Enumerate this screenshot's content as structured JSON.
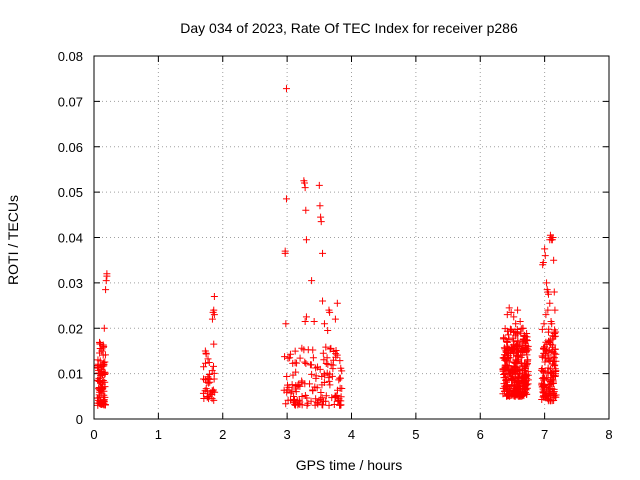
{
  "chart_data": {
    "type": "scatter",
    "title": "Day 034 of 2023, Rate Of TEC Index for receiver p286",
    "xlabel": "GPS time / hours",
    "ylabel": "ROTI / TECUs",
    "xlim": [
      0,
      8
    ],
    "ylim": [
      0,
      0.08
    ],
    "grid": true,
    "marker": "+",
    "series_color": "#ff0000",
    "x_ticks": [
      "0",
      "1",
      "2",
      "3",
      "4",
      "5",
      "6",
      "7",
      "8"
    ],
    "y_ticks": [
      "0",
      "0.01",
      "0.02",
      "0.03",
      "0.04",
      "0.05",
      "0.06",
      "0.07",
      "0.08"
    ],
    "clusters": [
      {
        "x": [
          0.05,
          0.18
        ],
        "y": [
          0.003,
          0.017
        ],
        "n": 90,
        "seed": 11
      },
      {
        "x": [
          1.7,
          1.88
        ],
        "y": [
          0.004,
          0.015
        ],
        "n": 35,
        "seed": 12
      },
      {
        "x": [
          2.95,
          3.85
        ],
        "y": [
          0.003,
          0.016
        ],
        "n": 140,
        "seed": 13
      },
      {
        "x": [
          6.35,
          6.75
        ],
        "y": [
          0.005,
          0.02
        ],
        "n": 330,
        "seed": 14
      },
      {
        "x": [
          6.95,
          7.18
        ],
        "y": [
          0.004,
          0.02
        ],
        "n": 140,
        "seed": 15
      }
    ],
    "points": [
      [
        0.1,
        0.0165
      ],
      [
        0.12,
        0.015
      ],
      [
        0.15,
        0.016
      ],
      [
        0.16,
        0.02
      ],
      [
        0.18,
        0.0285
      ],
      [
        0.19,
        0.0305
      ],
      [
        0.2,
        0.0315
      ],
      [
        0.2,
        0.032
      ],
      [
        0.14,
        0.012
      ],
      [
        1.73,
        0.015
      ],
      [
        1.74,
        0.0145
      ],
      [
        1.84,
        0.022
      ],
      [
        1.85,
        0.0235
      ],
      [
        1.86,
        0.024
      ],
      [
        1.87,
        0.023
      ],
      [
        1.87,
        0.027
      ],
      [
        1.86,
        0.0165
      ],
      [
        2.97,
        0.0365
      ],
      [
        2.97,
        0.037
      ],
      [
        2.99,
        0.0485
      ],
      [
        2.99,
        0.0728
      ],
      [
        2.98,
        0.021
      ],
      [
        3.26,
        0.0525
      ],
      [
        3.27,
        0.052
      ],
      [
        3.28,
        0.051
      ],
      [
        3.29,
        0.046
      ],
      [
        3.3,
        0.0395
      ],
      [
        3.28,
        0.0215
      ],
      [
        3.3,
        0.0225
      ],
      [
        3.38,
        0.0305
      ],
      [
        3.42,
        0.0215
      ],
      [
        3.5,
        0.0515
      ],
      [
        3.51,
        0.047
      ],
      [
        3.52,
        0.0445
      ],
      [
        3.53,
        0.0435
      ],
      [
        3.55,
        0.0365
      ],
      [
        3.55,
        0.026
      ],
      [
        3.65,
        0.024
      ],
      [
        3.66,
        0.0235
      ],
      [
        3.63,
        0.0195
      ],
      [
        3.75,
        0.022
      ],
      [
        3.78,
        0.0255
      ],
      [
        3.58,
        0.021
      ],
      [
        6.42,
        0.023
      ],
      [
        6.45,
        0.0245
      ],
      [
        6.48,
        0.0235
      ],
      [
        6.52,
        0.0225
      ],
      [
        6.55,
        0.021
      ],
      [
        6.58,
        0.024
      ],
      [
        6.62,
        0.0215
      ],
      [
        6.66,
        0.02
      ],
      [
        6.97,
        0.034
      ],
      [
        6.98,
        0.0345
      ],
      [
        7.0,
        0.0375
      ],
      [
        7.01,
        0.036
      ],
      [
        7.03,
        0.03
      ],
      [
        7.04,
        0.0285
      ],
      [
        7.05,
        0.028
      ],
      [
        7.06,
        0.0275
      ],
      [
        7.05,
        0.024
      ],
      [
        7.08,
        0.0255
      ],
      [
        7.1,
        0.0215
      ],
      [
        7.11,
        0.021
      ],
      [
        7.08,
        0.0395
      ],
      [
        7.09,
        0.0405
      ],
      [
        7.1,
        0.04
      ],
      [
        7.11,
        0.0395
      ],
      [
        7.12,
        0.0395
      ],
      [
        7.13,
        0.04
      ],
      [
        7.14,
        0.035
      ],
      [
        7.15,
        0.028
      ],
      [
        7.16,
        0.024
      ],
      [
        7.02,
        0.023
      ],
      [
        6.99,
        0.021
      ]
    ]
  }
}
